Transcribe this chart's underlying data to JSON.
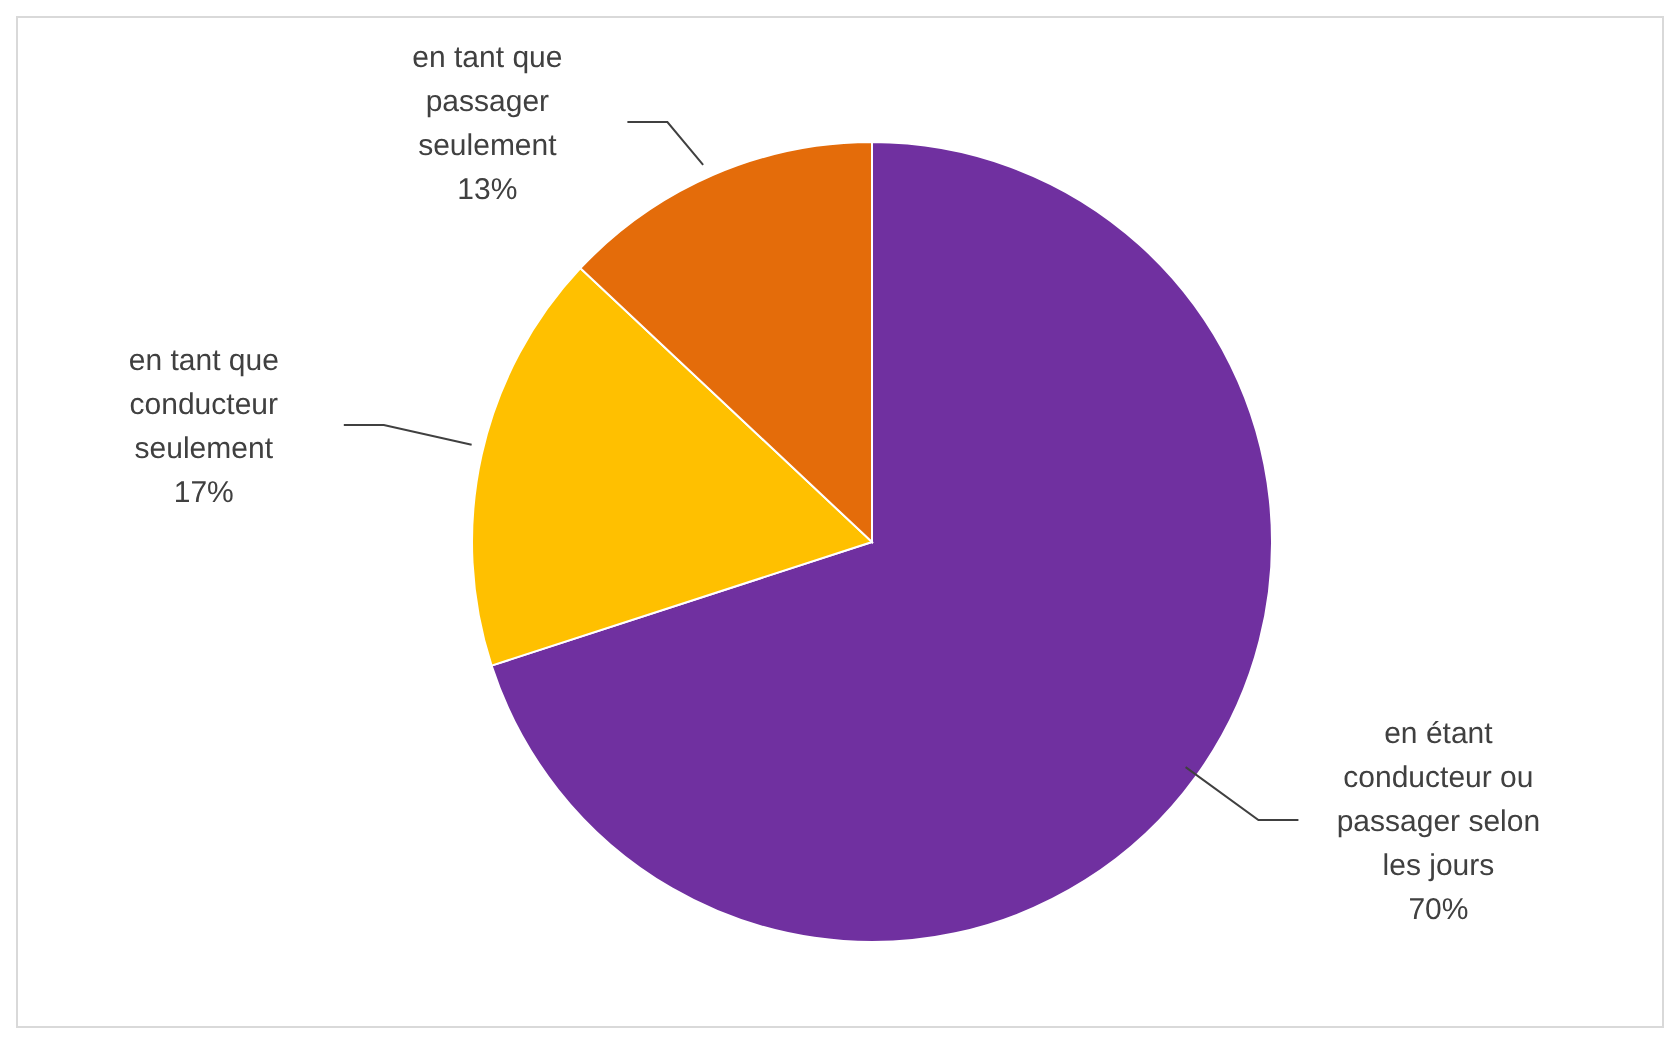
{
  "chart_data": {
    "type": "pie",
    "categories": [
      "en étant conducteur ou passager selon les jours",
      "en tant que conducteur seulement",
      "en tant que passager seulement"
    ],
    "values": [
      70,
      17,
      13
    ],
    "colors": [
      "#7030a0",
      "#ffc000",
      "#e46c0a"
    ],
    "value_labels": [
      "70%",
      "17%",
      "13%"
    ]
  }
}
